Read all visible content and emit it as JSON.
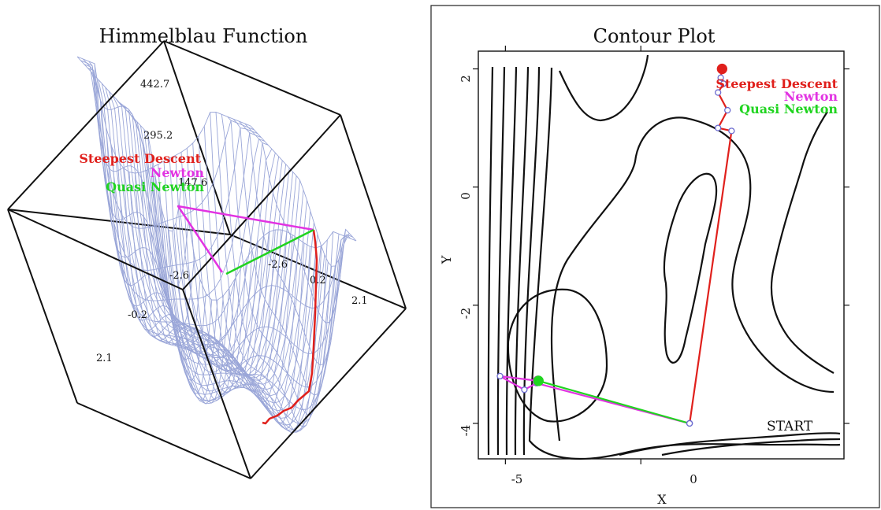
{
  "colors": {
    "steepest": "#e0201c",
    "newton": "#e233e2",
    "quasi": "#20d420",
    "mesh": "#9aa6d8",
    "contour": "#111111",
    "marker": "#6b6bd0"
  },
  "chart_data": [
    {
      "type": "surface",
      "title": "Himmelblau Function",
      "z_ticks": [
        "442.7",
        "295.2",
        "147.6"
      ],
      "x_ticks": [
        "-2.6",
        "-0.2",
        "2.1"
      ],
      "y_ticks": [
        "-2.6",
        "0.2",
        "2.1"
      ],
      "legend": [
        "Steepest Descent",
        "Newton",
        "Quasi Newton"
      ]
    },
    {
      "type": "line",
      "title": "Contour Plot",
      "xlabel": "X",
      "ylabel": "Y",
      "xlim": [
        -6,
        7.5
      ],
      "ylim": [
        -4.6,
        2.3
      ],
      "x_ticks": [
        "-5",
        "0"
      ],
      "y_ticks": [
        "2",
        "0",
        "-2",
        "-4"
      ],
      "annotation": "START",
      "start": [
        1.8,
        -4.0
      ],
      "legend": [
        "Steepest Descent",
        "Newton",
        "Quasi Newton"
      ],
      "series": [
        {
          "name": "Steepest Descent",
          "points": [
            [
              1.8,
              -4.0
            ],
            [
              3.35,
              0.95
            ],
            [
              2.85,
              1.0
            ],
            [
              3.2,
              1.3
            ],
            [
              2.85,
              1.6
            ],
            [
              3.05,
              1.75
            ],
            [
              2.95,
              1.85
            ],
            [
              3.0,
              2.0
            ]
          ]
        },
        {
          "name": "Newton",
          "points": [
            [
              1.8,
              -4.0
            ],
            [
              -3.85,
              -3.32
            ],
            [
              -4.3,
              -3.43
            ],
            [
              -5.2,
              -3.2
            ],
            [
              -3.8,
              -3.28
            ]
          ]
        },
        {
          "name": "Quasi Newton",
          "points": [
            [
              1.8,
              -4.0
            ],
            [
              -3.78,
              -3.28
            ]
          ]
        }
      ]
    }
  ]
}
